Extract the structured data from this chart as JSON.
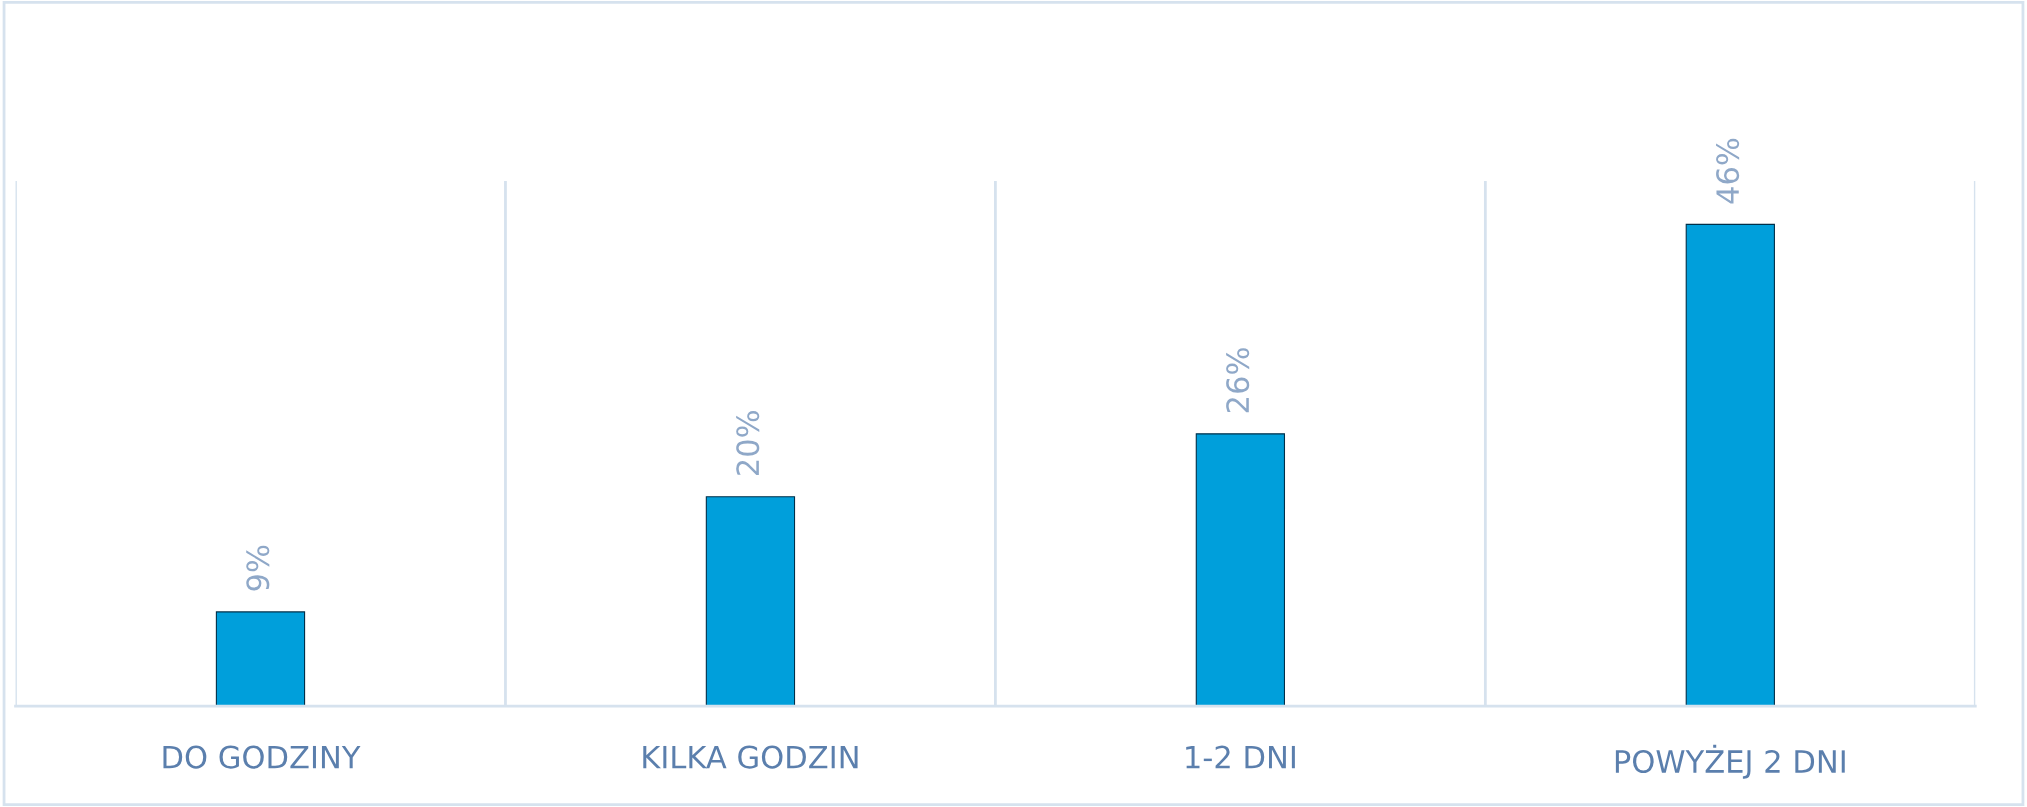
{
  "chart_data": {
    "type": "bar",
    "categories": [
      "DO GODZINY",
      "KILKA GODZIN",
      "1-2 DNI",
      "POWYŻEJ 2 DNI"
    ],
    "values": [
      9,
      20,
      26,
      46
    ],
    "value_labels": [
      "9%",
      "20%",
      "26%",
      "46%"
    ],
    "color": "#009fdb",
    "grid": "x"
  }
}
